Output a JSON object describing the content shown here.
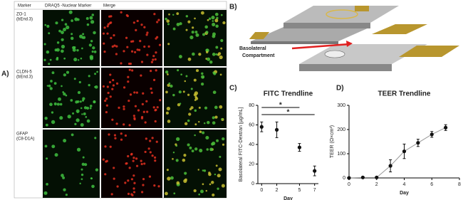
{
  "panel_labels": [
    "A)",
    "B)",
    "C)",
    "D)"
  ],
  "microscopy": {
    "headers": [
      "Marker",
      "DRAQ5 -Nuclear Marker",
      "Merge"
    ],
    "rows": [
      [
        "ZO-1",
        "(bEnd.3)"
      ],
      [
        "CLDN-5",
        "(bEnd.3)"
      ],
      [
        "GFAP",
        "(C8-D1A)"
      ]
    ]
  },
  "diagram": {
    "label": [
      "Basolateral",
      "Compartment"
    ]
  },
  "chart_data": [
    {
      "type": "scatter",
      "title": "FITC Trendline",
      "x_label": "Day",
      "y_label": "Basolateral FITC-Dextran [µg/mL]",
      "x": [
        0,
        2,
        5,
        7
      ],
      "series": [
        {
          "name": "FITC",
          "color": "#111111",
          "values": [
            58,
            55,
            37,
            13
          ],
          "errors": [
            5,
            8,
            4,
            5
          ]
        }
      ],
      "xlim": [
        -0.5,
        7.5
      ],
      "xticks": [
        0,
        2,
        5,
        7
      ],
      "ylim": [
        0,
        80
      ],
      "yticks": [
        0,
        20,
        40,
        60,
        80
      ],
      "annotations": [
        "*",
        "*"
      ]
    },
    {
      "type": "line",
      "title": "TEER Trendline",
      "x_label": "Day",
      "y_label": "TEER (Ω×cm²)",
      "x": [
        0,
        1,
        2,
        3,
        4,
        5,
        6,
        7
      ],
      "series": [
        {
          "name": "TEER",
          "color": "#111111",
          "values": [
            0,
            2,
            2,
            50,
            110,
            145,
            180,
            208
          ],
          "errors": [
            0,
            0,
            0,
            25,
            30,
            15,
            12,
            12
          ]
        }
      ],
      "xlim": [
        0,
        8
      ],
      "xticks": [
        0,
        2,
        4,
        6,
        8
      ],
      "ylim": [
        0,
        300
      ],
      "yticks": [
        0,
        100,
        200,
        300
      ]
    }
  ]
}
